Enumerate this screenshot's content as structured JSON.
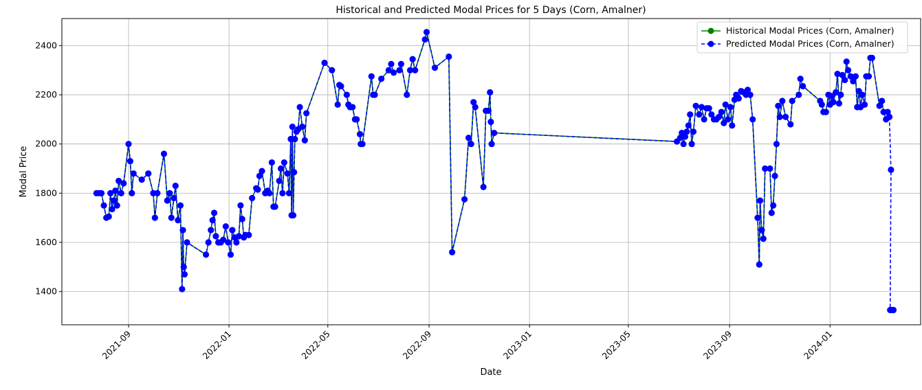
{
  "chart_data": {
    "type": "line",
    "title": "Historical and Predicted Modal Prices for 5 Days (Corn, Amalner)",
    "xlabel": "Date",
    "ylabel": "Modal Price",
    "xlim": [
      "2021-06-12",
      "2024-04-20"
    ],
    "ylim": [
      1265,
      2510
    ],
    "x_ticks": [
      "2021-09",
      "2022-01",
      "2022-05",
      "2022-09",
      "2023-01",
      "2023-05",
      "2023-09",
      "2024-01"
    ],
    "y_ticks": [
      1400,
      1600,
      1800,
      2000,
      2200,
      2400
    ],
    "grid": true,
    "legend_position": "top-right",
    "series": [
      {
        "name": "Historical Modal Prices (Corn, Amalner)",
        "color": "#008000",
        "line_style": "solid",
        "marker": "circle",
        "points": [
          [
            "2021-07-24",
            1800
          ],
          [
            "2021-07-27",
            1800
          ],
          [
            "2021-07-30",
            1800
          ],
          [
            "2021-08-02",
            1750
          ],
          [
            "2021-08-05",
            1700
          ],
          [
            "2021-08-08",
            1705
          ],
          [
            "2021-08-10",
            1800
          ],
          [
            "2021-08-12",
            1735
          ],
          [
            "2021-08-14",
            1770
          ],
          [
            "2021-08-16",
            1810
          ],
          [
            "2021-08-18",
            1750
          ],
          [
            "2021-08-20",
            1850
          ],
          [
            "2021-08-23",
            1800
          ],
          [
            "2021-08-26",
            1840
          ],
          [
            "2021-09-01",
            2000
          ],
          [
            "2021-09-03",
            1930
          ],
          [
            "2021-09-05",
            1800
          ],
          [
            "2021-09-07",
            1880
          ],
          [
            "2021-09-17",
            1855
          ],
          [
            "2021-09-25",
            1880
          ],
          [
            "2021-10-01",
            1800
          ],
          [
            "2021-10-03",
            1700
          ],
          [
            "2021-10-06",
            1800
          ],
          [
            "2021-10-14",
            1960
          ],
          [
            "2021-10-18",
            1770
          ],
          [
            "2021-10-21",
            1800
          ],
          [
            "2021-10-23",
            1700
          ],
          [
            "2021-10-26",
            1780
          ],
          [
            "2021-10-28",
            1830
          ],
          [
            "2021-10-31",
            1690
          ],
          [
            "2021-11-03",
            1750
          ],
          [
            "2021-11-05",
            1410
          ],
          [
            "2021-11-06",
            1650
          ],
          [
            "2021-11-07",
            1500
          ],
          [
            "2021-11-08",
            1470
          ],
          [
            "2021-11-11",
            1600
          ],
          [
            "2021-12-04",
            1550
          ],
          [
            "2021-12-07",
            1600
          ],
          [
            "2021-12-10",
            1650
          ],
          [
            "2021-12-12",
            1690
          ],
          [
            "2021-12-14",
            1720
          ],
          [
            "2021-12-16",
            1625
          ],
          [
            "2021-12-19",
            1600
          ],
          [
            "2021-12-22",
            1600
          ],
          [
            "2021-12-25",
            1610
          ],
          [
            "2021-12-28",
            1665
          ],
          [
            "2021-12-31",
            1600
          ],
          [
            "2022-01-03",
            1550
          ],
          [
            "2022-01-05",
            1650
          ],
          [
            "2022-01-08",
            1620
          ],
          [
            "2022-01-10",
            1600
          ],
          [
            "2022-01-13",
            1625
          ],
          [
            "2022-01-15",
            1750
          ],
          [
            "2022-01-17",
            1695
          ],
          [
            "2022-01-19",
            1620
          ],
          [
            "2022-01-21",
            1630
          ],
          [
            "2022-01-25",
            1630
          ],
          [
            "2022-01-29",
            1780
          ],
          [
            "2022-02-03",
            1820
          ],
          [
            "2022-02-05",
            1815
          ],
          [
            "2022-02-07",
            1870
          ],
          [
            "2022-02-10",
            1890
          ],
          [
            "2022-02-14",
            1800
          ],
          [
            "2022-02-17",
            1810
          ],
          [
            "2022-02-19",
            1800
          ],
          [
            "2022-02-22",
            1925
          ],
          [
            "2022-02-24",
            1745
          ],
          [
            "2022-02-26",
            1745
          ],
          [
            "2022-03-03",
            1850
          ],
          [
            "2022-03-05",
            1900
          ],
          [
            "2022-03-07",
            1800
          ],
          [
            "2022-03-09",
            1925
          ],
          [
            "2022-03-13",
            1880
          ],
          [
            "2022-03-15",
            1800
          ],
          [
            "2022-03-17",
            2020
          ],
          [
            "2022-03-18",
            1710
          ],
          [
            "2022-03-19",
            2070
          ],
          [
            "2022-03-20",
            1710
          ],
          [
            "2022-03-21",
            1885
          ],
          [
            "2022-03-22",
            2020
          ],
          [
            "2022-03-24",
            2050
          ],
          [
            "2022-03-26",
            2060
          ],
          [
            "2022-03-28",
            2150
          ],
          [
            "2022-03-31",
            2070
          ],
          [
            "2022-04-03",
            2015
          ],
          [
            "2022-04-05",
            2125
          ],
          [
            "2022-04-27",
            2330
          ],
          [
            "2022-05-06",
            2300
          ],
          [
            "2022-05-13",
            2160
          ],
          [
            "2022-05-15",
            2240
          ],
          [
            "2022-05-17",
            2235
          ],
          [
            "2022-05-24",
            2200
          ],
          [
            "2022-05-26",
            2160
          ],
          [
            "2022-05-28",
            2150
          ],
          [
            "2022-05-31",
            2150
          ],
          [
            "2022-06-03",
            2100
          ],
          [
            "2022-06-05",
            2100
          ],
          [
            "2022-06-09",
            2040
          ],
          [
            "2022-06-10",
            2000
          ],
          [
            "2022-06-12",
            2000
          ],
          [
            "2022-06-23",
            2275
          ],
          [
            "2022-06-25",
            2200
          ],
          [
            "2022-06-27",
            2200
          ],
          [
            "2022-07-05",
            2265
          ],
          [
            "2022-07-14",
            2300
          ],
          [
            "2022-07-17",
            2325
          ],
          [
            "2022-07-20",
            2290
          ],
          [
            "2022-07-27",
            2300
          ],
          [
            "2022-07-29",
            2325
          ],
          [
            "2022-08-05",
            2200
          ],
          [
            "2022-08-09",
            2300
          ],
          [
            "2022-08-12",
            2345
          ],
          [
            "2022-08-15",
            2300
          ],
          [
            "2022-08-27",
            2425
          ],
          [
            "2022-08-29",
            2455
          ],
          [
            "2022-09-08",
            2310
          ],
          [
            "2022-09-25",
            2355
          ],
          [
            "2022-09-29",
            1560
          ],
          [
            "2022-10-14",
            1775
          ],
          [
            "2022-10-19",
            2025
          ],
          [
            "2022-10-22",
            2000
          ],
          [
            "2022-10-25",
            2170
          ],
          [
            "2022-10-27",
            2150
          ],
          [
            "2022-11-06",
            1825
          ],
          [
            "2022-11-09",
            2135
          ],
          [
            "2022-11-12",
            2135
          ],
          [
            "2022-11-14",
            2210
          ],
          [
            "2022-11-15",
            2090
          ],
          [
            "2022-11-16",
            2000
          ],
          [
            "2022-11-19",
            2045
          ],
          [
            "2023-06-29",
            2010
          ],
          [
            "2023-07-03",
            2025
          ],
          [
            "2023-07-05",
            2045
          ],
          [
            "2023-07-07",
            2000
          ],
          [
            "2023-07-09",
            2030
          ],
          [
            "2023-07-11",
            2050
          ],
          [
            "2023-07-13",
            2075
          ],
          [
            "2023-07-15",
            2120
          ],
          [
            "2023-07-17",
            2000
          ],
          [
            "2023-07-19",
            2050
          ],
          [
            "2023-07-22",
            2155
          ],
          [
            "2023-07-26",
            2120
          ],
          [
            "2023-07-29",
            2150
          ],
          [
            "2023-08-01",
            2100
          ],
          [
            "2023-08-04",
            2145
          ],
          [
            "2023-08-07",
            2145
          ],
          [
            "2023-08-10",
            2120
          ],
          [
            "2023-08-13",
            2100
          ],
          [
            "2023-08-16",
            2100
          ],
          [
            "2023-08-19",
            2110
          ],
          [
            "2023-08-22",
            2130
          ],
          [
            "2023-08-25",
            2085
          ],
          [
            "2023-08-27",
            2160
          ],
          [
            "2023-08-30",
            2100
          ],
          [
            "2023-09-02",
            2150
          ],
          [
            "2023-09-04",
            2075
          ],
          [
            "2023-09-07",
            2180
          ],
          [
            "2023-09-09",
            2200
          ],
          [
            "2023-09-12",
            2185
          ],
          [
            "2023-09-15",
            2215
          ],
          [
            "2023-09-18",
            2210
          ],
          [
            "2023-09-21",
            2200
          ],
          [
            "2023-09-23",
            2220
          ],
          [
            "2023-09-26",
            2200
          ],
          [
            "2023-09-29",
            2100
          ],
          [
            "2023-10-05",
            1700
          ],
          [
            "2023-10-07",
            1510
          ],
          [
            "2023-10-08",
            1770
          ],
          [
            "2023-10-10",
            1650
          ],
          [
            "2023-10-12",
            1615
          ],
          [
            "2023-10-14",
            1900
          ],
          [
            "2023-10-20",
            1900
          ],
          [
            "2023-10-22",
            1720
          ],
          [
            "2023-10-24",
            1750
          ],
          [
            "2023-10-26",
            1870
          ],
          [
            "2023-10-28",
            2000
          ],
          [
            "2023-10-30",
            2155
          ],
          [
            "2023-11-01",
            2110
          ],
          [
            "2023-11-04",
            2175
          ],
          [
            "2023-11-08",
            2110
          ],
          [
            "2023-11-14",
            2080
          ],
          [
            "2023-11-16",
            2175
          ],
          [
            "2023-11-24",
            2200
          ],
          [
            "2023-11-26",
            2265
          ],
          [
            "2023-11-29",
            2235
          ],
          [
            "2023-12-20",
            2175
          ],
          [
            "2023-12-22",
            2160
          ],
          [
            "2023-12-24",
            2130
          ],
          [
            "2023-12-27",
            2130
          ],
          [
            "2023-12-30",
            2200
          ],
          [
            "2024-01-01",
            2160
          ],
          [
            "2024-01-03",
            2195
          ],
          [
            "2024-01-05",
            2170
          ],
          [
            "2024-01-08",
            2210
          ],
          [
            "2024-01-10",
            2285
          ],
          [
            "2024-01-12",
            2165
          ],
          [
            "2024-01-14",
            2200
          ],
          [
            "2024-01-16",
            2280
          ],
          [
            "2024-01-19",
            2260
          ],
          [
            "2024-01-21",
            2335
          ],
          [
            "2024-01-23",
            2300
          ],
          [
            "2024-01-26",
            2275
          ],
          [
            "2024-01-29",
            2255
          ],
          [
            "2024-02-01",
            2275
          ],
          [
            "2024-02-03",
            2150
          ],
          [
            "2024-02-05",
            2215
          ],
          [
            "2024-02-07",
            2150
          ],
          [
            "2024-02-09",
            2200
          ],
          [
            "2024-02-12",
            2160
          ],
          [
            "2024-02-14",
            2275
          ],
          [
            "2024-02-17",
            2275
          ],
          [
            "2024-02-19",
            2350
          ],
          [
            "2024-02-21",
            2350
          ],
          [
            "2024-03-01",
            2155
          ],
          [
            "2024-03-04",
            2175
          ],
          [
            "2024-03-06",
            2130
          ],
          [
            "2024-03-09",
            2100
          ],
          [
            "2024-03-11",
            2130
          ],
          [
            "2024-03-13",
            2110
          ]
        ]
      },
      {
        "name": "Predicted Modal Prices (Corn, Amalner)",
        "color": "#0000ff",
        "line_style": "dashed",
        "marker": "circle",
        "points": [
          [
            "2024-03-13",
            2110
          ],
          [
            "2024-03-15",
            1895
          ],
          [
            "2024-03-14",
            1325
          ],
          [
            "2024-03-16",
            1325
          ],
          [
            "2024-03-18",
            1325
          ]
        ]
      }
    ]
  }
}
